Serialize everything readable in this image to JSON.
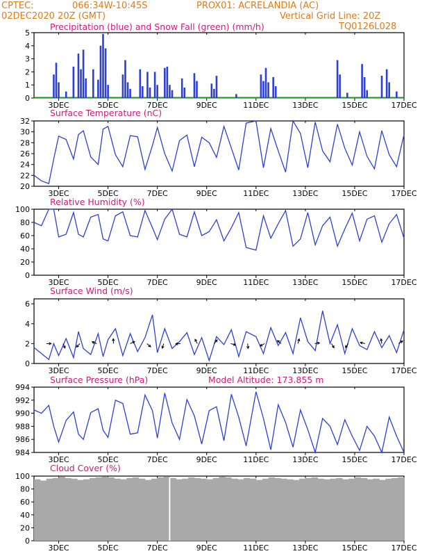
{
  "header": {
    "org": "CPTEC:",
    "coords": "066:34W-10:45S",
    "location": "PROX01: ACRELANDIA (AC)",
    "run": "02DEC2020 20Z (GMT)",
    "grid_note": "Vertical Grid Line: 20Z",
    "model": "TQ0126L028"
  },
  "x_ticks": [
    "3DEC",
    "5DEC",
    "7DEC",
    "9DEC",
    "11DEC",
    "13DEC",
    "15DEC",
    "17DEC"
  ],
  "panels": {
    "precip": {
      "title": "Precipitation (blue) and Snow Fall (green) (mm/h)",
      "yticks": [
        "0",
        "1",
        "2",
        "3",
        "4",
        "5"
      ]
    },
    "temp": {
      "title": "Surface Temperature (nC)",
      "yticks": [
        "20",
        "22",
        "24",
        "26",
        "28",
        "30",
        "32"
      ]
    },
    "rh": {
      "title": "Relative Humidity (%)",
      "yticks": [
        "0",
        "20",
        "40",
        "60",
        "80",
        "100"
      ]
    },
    "wind": {
      "title": "Surface Wind (m/s)",
      "yticks": [
        "0",
        "2",
        "4",
        "6"
      ]
    },
    "press": {
      "title": "Surface Pressure (hPa)",
      "extra": "Model Altitude: 173.855 m",
      "yticks": [
        "984",
        "986",
        "988",
        "990",
        "992",
        "994"
      ]
    },
    "cloud": {
      "title": "Cloud Cover (%)",
      "yticks": [
        "0",
        "20",
        "40",
        "60",
        "80",
        "100"
      ]
    }
  },
  "colors": {
    "header": "#e07b1a",
    "title": "#d6177a",
    "line": "#2e3fd6",
    "snow": "#1a9e1a",
    "cloud": "#a9a9a9"
  },
  "chart_data": [
    {
      "type": "bar",
      "title": "Precipitation (blue) and Snow Fall (green) (mm/h)",
      "ylim": [
        0,
        5
      ],
      "series": [
        {
          "name": "Precipitation (blue)",
          "points": [
            [
              2.8,
              1.8
            ],
            [
              2.9,
              2.7
            ],
            [
              3.0,
              1.2
            ],
            [
              3.3,
              0.5
            ],
            [
              3.6,
              2.4
            ],
            [
              3.8,
              3.4
            ],
            [
              3.9,
              2.2
            ],
            [
              4.0,
              3.7
            ],
            [
              4.1,
              1.5
            ],
            [
              4.4,
              2.2
            ],
            [
              4.6,
              1.4
            ],
            [
              4.7,
              4.0
            ],
            [
              4.8,
              4.9
            ],
            [
              4.9,
              3.8
            ],
            [
              5.0,
              1.0
            ],
            [
              5.6,
              1.8
            ],
            [
              5.7,
              2.9
            ],
            [
              5.8,
              1.2
            ],
            [
              5.9,
              0.7
            ],
            [
              6.3,
              2.2
            ],
            [
              6.4,
              0.9
            ],
            [
              6.6,
              2.0
            ],
            [
              6.7,
              0.8
            ],
            [
              6.9,
              2.0
            ],
            [
              7.0,
              1.0
            ],
            [
              7.3,
              2.3
            ],
            [
              7.4,
              2.4
            ],
            [
              7.5,
              1.0
            ],
            [
              7.6,
              0.6
            ],
            [
              8.0,
              1.5
            ],
            [
              8.1,
              0.8
            ],
            [
              8.5,
              1.9
            ],
            [
              8.6,
              1.3
            ],
            [
              9.2,
              1.1
            ],
            [
              9.3,
              0.7
            ],
            [
              9.4,
              1.7
            ],
            [
              10.2,
              0.3
            ],
            [
              11.2,
              1.8
            ],
            [
              11.3,
              1.3
            ],
            [
              11.4,
              2.3
            ],
            [
              11.5,
              1.2
            ],
            [
              11.7,
              1.6
            ],
            [
              11.8,
              0.9
            ],
            [
              14.3,
              2.9
            ],
            [
              14.4,
              1.8
            ],
            [
              14.7,
              0.4
            ],
            [
              15.3,
              2.6
            ],
            [
              15.4,
              1.6
            ],
            [
              15.5,
              0.6
            ],
            [
              16.1,
              1.7
            ],
            [
              16.3,
              2.2
            ],
            [
              16.4,
              1.2
            ],
            [
              16.7,
              0.5
            ]
          ]
        },
        {
          "name": "Snow Fall (green)",
          "values": []
        }
      ]
    },
    {
      "type": "line",
      "title": "Surface Temperature (nC)",
      "ylim": [
        20,
        32
      ],
      "x": [
        2.0,
        2.3,
        2.6,
        2.8,
        3.0,
        3.3,
        3.6,
        3.8,
        4.0,
        4.3,
        4.6,
        4.8,
        5.0,
        5.3,
        5.6,
        5.9,
        6.2,
        6.5,
        6.8,
        7.0,
        7.3,
        7.6,
        7.9,
        8.2,
        8.5,
        8.8,
        9.1,
        9.4,
        9.7,
        10.0,
        10.3,
        10.6,
        11.0,
        11.3,
        11.6,
        11.9,
        12.2,
        12.5,
        12.8,
        13.1,
        13.4,
        13.7,
        14.0,
        14.3,
        14.6,
        14.9,
        15.2,
        15.5,
        15.8,
        16.1,
        16.4,
        16.7,
        17.0
      ],
      "values": [
        22.0,
        21.0,
        20.5,
        25.0,
        29.2,
        28.6,
        25.0,
        29.5,
        30.2,
        25.4,
        24.0,
        30.5,
        31.0,
        25.8,
        23.6,
        29.3,
        29.1,
        23.1,
        27.5,
        30.8,
        26.0,
        22.8,
        28.4,
        29.4,
        23.6,
        29.0,
        28.0,
        25.3,
        31.0,
        27.0,
        23.0,
        31.6,
        32.0,
        23.4,
        30.6,
        26.5,
        22.6,
        32.0,
        29.7,
        23.4,
        31.8,
        26.5,
        24.5,
        31.4,
        27.0,
        23.9,
        30.0,
        25.5,
        23.2,
        30.2,
        25.8,
        23.6,
        29.5
      ]
    },
    {
      "type": "line",
      "title": "Relative Humidity (%)",
      "ylim": [
        0,
        100
      ],
      "x": [
        2.0,
        2.3,
        2.6,
        2.8,
        3.0,
        3.3,
        3.6,
        3.8,
        4.0,
        4.3,
        4.6,
        4.8,
        5.0,
        5.3,
        5.6,
        5.9,
        6.2,
        6.5,
        6.8,
        7.0,
        7.3,
        7.6,
        7.9,
        8.2,
        8.5,
        8.8,
        9.1,
        9.4,
        9.7,
        10.0,
        10.3,
        10.6,
        11.0,
        11.3,
        11.6,
        11.9,
        12.2,
        12.5,
        12.8,
        13.1,
        13.4,
        13.7,
        14.0,
        14.3,
        14.6,
        14.9,
        15.2,
        15.5,
        15.8,
        16.1,
        16.4,
        16.7,
        17.0
      ],
      "values": [
        80,
        75,
        100,
        100,
        58,
        62,
        95,
        62,
        58,
        88,
        92,
        55,
        52,
        90,
        96,
        60,
        58,
        98,
        72,
        54,
        85,
        100,
        62,
        58,
        96,
        60,
        66,
        84,
        52,
        72,
        95,
        42,
        38,
        90,
        56,
        78,
        98,
        44,
        55,
        95,
        46,
        75,
        88,
        44,
        70,
        94,
        52,
        85,
        90,
        50,
        78,
        92,
        56
      ]
    },
    {
      "type": "line",
      "title": "Surface Wind (m/s)",
      "ylim": [
        0,
        6.5
      ],
      "x": [
        2.0,
        2.3,
        2.6,
        2.8,
        3.0,
        3.3,
        3.6,
        3.8,
        4.0,
        4.3,
        4.6,
        4.8,
        5.0,
        5.3,
        5.6,
        5.9,
        6.2,
        6.5,
        6.8,
        7.0,
        7.3,
        7.6,
        7.9,
        8.2,
        8.5,
        8.8,
        9.1,
        9.4,
        9.7,
        10.0,
        10.3,
        10.6,
        11.0,
        11.3,
        11.6,
        11.9,
        12.2,
        12.5,
        12.8,
        13.1,
        13.4,
        13.7,
        14.0,
        14.3,
        14.6,
        14.9,
        15.2,
        15.5,
        15.8,
        16.1,
        16.4,
        16.7,
        17.0
      ],
      "values": [
        1.6,
        1.0,
        0.4,
        2.0,
        0.8,
        2.5,
        0.6,
        3.2,
        1.5,
        0.9,
        3.0,
        0.7,
        2.4,
        3.5,
        0.8,
        3.0,
        1.2,
        2.6,
        4.9,
        1.1,
        3.5,
        1.5,
        2.2,
        3.1,
        0.9,
        2.6,
        0.3,
        2.7,
        1.9,
        3.4,
        0.7,
        3.2,
        2.7,
        1.0,
        3.6,
        1.8,
        3.1,
        1.0,
        4.6,
        2.2,
        1.3,
        5.3,
        2.0,
        3.9,
        1.0,
        3.5,
        1.8,
        1.4,
        3.2,
        1.6,
        2.8,
        1.1,
        3.4
      ]
    },
    {
      "type": "line",
      "title": "Surface Pressure (hPa)",
      "ylim": [
        984,
        994
      ],
      "x": [
        2.0,
        2.3,
        2.6,
        2.8,
        3.0,
        3.3,
        3.6,
        3.8,
        4.0,
        4.3,
        4.6,
        4.8,
        5.0,
        5.3,
        5.6,
        5.9,
        6.2,
        6.5,
        6.8,
        7.0,
        7.3,
        7.6,
        7.9,
        8.2,
        8.5,
        8.8,
        9.1,
        9.4,
        9.7,
        10.0,
        10.3,
        10.6,
        11.0,
        11.3,
        11.6,
        11.9,
        12.2,
        12.5,
        12.8,
        13.1,
        13.4,
        13.7,
        14.0,
        14.3,
        14.6,
        14.9,
        15.2,
        15.5,
        15.8,
        16.1,
        16.4,
        16.7,
        17.0
      ],
      "values": [
        990.5,
        990.0,
        991.2,
        988.0,
        985.6,
        988.9,
        990.2,
        986.8,
        986.0,
        990.1,
        990.7,
        987.4,
        986.3,
        992.0,
        991.5,
        986.8,
        987.0,
        992.8,
        990.4,
        986.2,
        993.1,
        988.5,
        986.0,
        992.1,
        989.6,
        985.3,
        990.4,
        991.0,
        985.8,
        992.9,
        989.4,
        985.0,
        993.3,
        989.2,
        984.4,
        991.3,
        988.6,
        984.8,
        990.5,
        987.5,
        983.8,
        989.2,
        988.0,
        985.2,
        989.0,
        986.5,
        984.3,
        988.0,
        986.5,
        983.9,
        989.4,
        986.5,
        983.9
      ]
    },
    {
      "type": "bar",
      "title": "Cloud Cover (%)",
      "ylim": [
        0,
        100
      ],
      "x_range": [
        2.0,
        17.0
      ],
      "values": [
        95,
        93,
        96,
        97,
        99,
        97,
        96,
        94,
        95,
        97,
        98,
        99,
        98,
        96,
        95,
        97,
        98,
        96,
        94,
        96,
        98,
        99,
        97,
        95,
        96,
        98,
        97,
        96,
        95,
        97,
        99,
        98,
        96,
        95,
        97,
        96,
        94,
        96,
        98,
        97,
        96,
        95,
        94,
        96,
        97,
        98,
        96,
        95,
        96,
        97,
        95,
        96,
        98,
        97,
        95,
        96,
        94,
        96,
        97,
        98
      ],
      "gaps": [
        7.5
      ]
    }
  ]
}
